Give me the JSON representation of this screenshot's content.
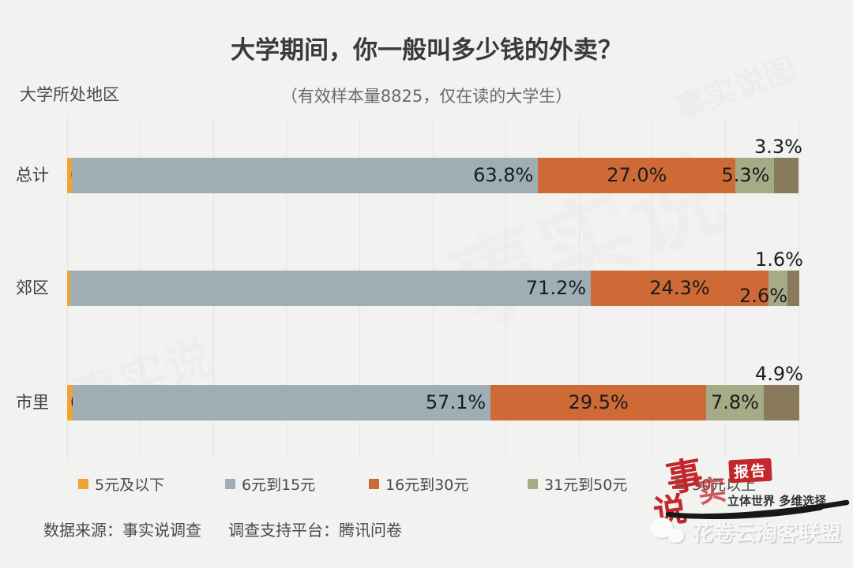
{
  "title": "大学期间，你一般叫多少钱的外卖？",
  "subtitle": "（有效样本量8825，仅在读的大学生）",
  "axis_label": "大学所处地区",
  "chart_data": {
    "type": "bar",
    "orientation": "horizontal-stacked",
    "categories": [
      "总计",
      "郊区",
      "市里"
    ],
    "series": [
      {
        "name": "5元及以下",
        "color": "#F0A437",
        "values": [
          0.6,
          0.4,
          0.8
        ]
      },
      {
        "name": "6元到15元",
        "color": "#9FAEB4",
        "values": [
          63.8,
          71.2,
          57.1
        ]
      },
      {
        "name": "16元到30元",
        "color": "#CE6A36",
        "values": [
          27.0,
          24.3,
          29.5
        ]
      },
      {
        "name": "31元到50元",
        "color": "#A5AB87",
        "values": [
          5.3,
          2.6,
          7.8
        ]
      },
      {
        "name": "50元以上",
        "color": "#8A7A5C",
        "values": [
          3.3,
          1.6,
          4.9
        ]
      }
    ],
    "value_labels": [
      [
        "0.6%",
        "63.8%",
        "27.0%",
        "5.3%",
        "3.3%"
      ],
      [
        "0.4%",
        "71.2%",
        "24.3%",
        "2.6%",
        "1.6%"
      ],
      [
        "0.8%",
        "57.1%",
        "29.5%",
        "7.8%",
        "4.9%"
      ]
    ],
    "label_placements": [
      [
        "inside-start",
        "inside-end",
        "center",
        "inside-end",
        "above-end"
      ],
      [
        "inside-start",
        "inside-end",
        "center",
        "below-end",
        "above-end"
      ],
      [
        "inside-start",
        "inside-end",
        "center",
        "center",
        "above-end"
      ]
    ],
    "xlim": [
      0,
      100
    ],
    "gridline_step": 10,
    "grid": true,
    "legend_position": "bottom"
  },
  "legend": {
    "items": [
      {
        "label": "5元及以下",
        "color": "#F0A437"
      },
      {
        "label": "6元到15元",
        "color": "#9FAEB4"
      },
      {
        "label": "16元到30元",
        "color": "#CE6A36"
      },
      {
        "label": "31元到50元",
        "color": "#A5AB87"
      },
      {
        "label": "50元以上",
        "color": "#8A7A5C"
      }
    ]
  },
  "footer": {
    "source": "数据来源：事实说调查",
    "platform": "调查支持平台：腾讯问卷"
  },
  "logo": {
    "char1": "事",
    "char2": "实",
    "char3": "说",
    "badge": "报告",
    "tagline": "立体世界 多维选择",
    "accent_color": "#C1272D"
  },
  "watermark": {
    "text": "花卷云淘客联盟"
  },
  "ghosts": {
    "g1": "事实说",
    "g2": "事实说",
    "g3": "事实说图"
  }
}
